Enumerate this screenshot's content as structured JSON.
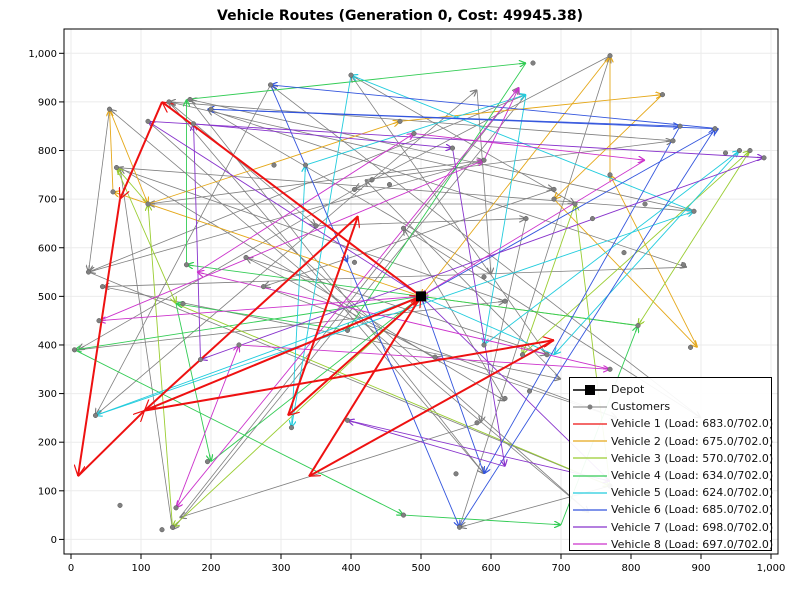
{
  "chart_data": {
    "type": "network-route",
    "title": "Vehicle Routes (Generation 0, Cost: 49945.38)",
    "xlim": [
      -10,
      1010
    ],
    "ylim": [
      -30,
      1050
    ],
    "x_ticks": [
      "0",
      "100",
      "200",
      "300",
      "400",
      "500",
      "600",
      "700",
      "800",
      "900",
      "1,000"
    ],
    "y_ticks": [
      "0",
      "100",
      "200",
      "300",
      "400",
      "500",
      "600",
      "700",
      "800",
      "900",
      "1,000"
    ],
    "x_tick_values": [
      0,
      100,
      200,
      300,
      400,
      500,
      600,
      700,
      800,
      900,
      1000
    ],
    "y_tick_values": [
      0,
      100,
      200,
      300,
      400,
      500,
      600,
      700,
      800,
      900,
      1000
    ],
    "grid": true,
    "legend_position": "bottom-right",
    "depot": {
      "label": "Depot",
      "x": 500,
      "y": 500
    },
    "customers_label": "Customers",
    "customers": [
      [
        70,
        70
      ],
      [
        140,
        900
      ],
      [
        25,
        550
      ],
      [
        55,
        885
      ],
      [
        60,
        715
      ],
      [
        65,
        765
      ],
      [
        110,
        860
      ],
      [
        145,
        25
      ],
      [
        45,
        520
      ],
      [
        110,
        690
      ],
      [
        5,
        390
      ],
      [
        40,
        450
      ],
      [
        35,
        255
      ],
      [
        150,
        65
      ],
      [
        130,
        20
      ],
      [
        170,
        905
      ],
      [
        175,
        855
      ],
      [
        165,
        565
      ],
      [
        160,
        485
      ],
      [
        185,
        370
      ],
      [
        200,
        885
      ],
      [
        195,
        160
      ],
      [
        240,
        400
      ],
      [
        250,
        580
      ],
      [
        285,
        935
      ],
      [
        290,
        770
      ],
      [
        275,
        520
      ],
      [
        315,
        230
      ],
      [
        335,
        770
      ],
      [
        400,
        955
      ],
      [
        405,
        720
      ],
      [
        405,
        570
      ],
      [
        395,
        430
      ],
      [
        395,
        245
      ],
      [
        430,
        740
      ],
      [
        455,
        730
      ],
      [
        475,
        640
      ],
      [
        475,
        50
      ],
      [
        490,
        835
      ],
      [
        470,
        860
      ],
      [
        545,
        805
      ],
      [
        550,
        135
      ],
      [
        555,
        25
      ],
      [
        590,
        540
      ],
      [
        590,
        400
      ],
      [
        590,
        780
      ],
      [
        620,
        290
      ],
      [
        620,
        490
      ],
      [
        645,
        380
      ],
      [
        650,
        660
      ],
      [
        655,
        305
      ],
      [
        660,
        980
      ],
      [
        680,
        380
      ],
      [
        690,
        720
      ],
      [
        690,
        700
      ],
      [
        720,
        690
      ],
      [
        745,
        660
      ],
      [
        770,
        110
      ],
      [
        770,
        350
      ],
      [
        770,
        995
      ],
      [
        770,
        750
      ],
      [
        790,
        590
      ],
      [
        810,
        440
      ],
      [
        820,
        690
      ],
      [
        845,
        915
      ],
      [
        860,
        820
      ],
      [
        870,
        850
      ],
      [
        875,
        565
      ],
      [
        885,
        395
      ],
      [
        890,
        675
      ],
      [
        920,
        845
      ],
      [
        935,
        795
      ],
      [
        955,
        800
      ],
      [
        970,
        800
      ],
      [
        990,
        785
      ],
      [
        580,
        240
      ],
      [
        520,
        375
      ],
      [
        350,
        645
      ]
    ],
    "series": [
      {
        "name": "Vehicle 1 (Load: 683.0/702.0)",
        "color": "#ee1111",
        "route": [
          [
            500,
            500
          ],
          [
            310,
            255
          ],
          [
            410,
            665
          ],
          [
            105,
            265
          ],
          [
            690,
            410
          ],
          [
            340,
            130
          ],
          [
            500,
            500
          ],
          [
            130,
            900
          ],
          [
            70,
            700
          ],
          [
            10,
            130
          ],
          [
            105,
            265
          ],
          [
            500,
            500
          ]
        ]
      },
      {
        "name": "Vehicle 2 (Load: 675.0/702.0)",
        "color": "#e5a81a",
        "route": [
          [
            500,
            500
          ],
          [
            60,
            715
          ],
          [
            55,
            885
          ],
          [
            110,
            690
          ],
          [
            470,
            860
          ],
          [
            845,
            915
          ],
          [
            690,
            700
          ],
          [
            895,
            395
          ],
          [
            770,
            750
          ],
          [
            770,
            995
          ],
          [
            500,
            500
          ]
        ]
      },
      {
        "name": "Vehicle 3 (Load: 570.0/702.0)",
        "color": "#9acd32",
        "route": [
          [
            500,
            500
          ],
          [
            145,
            25
          ],
          [
            110,
            690
          ],
          [
            65,
            765
          ],
          [
            150,
            485
          ],
          [
            770,
            110
          ],
          [
            720,
            690
          ],
          [
            645,
            380
          ],
          [
            970,
            800
          ],
          [
            810,
            440
          ],
          [
            500,
            500
          ]
        ]
      },
      {
        "name": "Vehicle 4 (Load: 634.0/702.0)",
        "color": "#33cc55",
        "route": [
          [
            500,
            500
          ],
          [
            5,
            390
          ],
          [
            475,
            50
          ],
          [
            700,
            30
          ],
          [
            810,
            440
          ],
          [
            165,
            565
          ],
          [
            165,
            905
          ],
          [
            650,
            980
          ],
          [
            395,
            430
          ],
          [
            150,
            485
          ],
          [
            200,
            160
          ],
          [
            500,
            500
          ]
        ]
      },
      {
        "name": "Vehicle 5 (Load: 624.0/702.0)",
        "color": "#22ccdd",
        "route": [
          [
            500,
            500
          ],
          [
            35,
            255
          ],
          [
            890,
            675
          ],
          [
            400,
            955
          ],
          [
            315,
            230
          ],
          [
            335,
            770
          ],
          [
            650,
            915
          ],
          [
            590,
            400
          ],
          [
            955,
            800
          ],
          [
            690,
            380
          ],
          [
            500,
            500
          ]
        ]
      },
      {
        "name": "Vehicle 6 (Load: 685.0/702.0)",
        "color": "#3355dd",
        "route": [
          [
            500,
            500
          ],
          [
            925,
            845
          ],
          [
            285,
            935
          ],
          [
            395,
            570
          ],
          [
            555,
            25
          ],
          [
            920,
            845
          ],
          [
            195,
            885
          ],
          [
            870,
            850
          ],
          [
            590,
            135
          ],
          [
            500,
            500
          ]
        ]
      },
      {
        "name": "Vehicle 7 (Load: 698.0/702.0)",
        "color": "#8833cc",
        "route": [
          [
            500,
            500
          ],
          [
            110,
            860
          ],
          [
            990,
            785
          ],
          [
            185,
            370
          ],
          [
            175,
            855
          ],
          [
            545,
            805
          ],
          [
            620,
            150
          ],
          [
            395,
            245
          ],
          [
            770,
            120
          ],
          [
            500,
            500
          ]
        ]
      },
      {
        "name": "Vehicle 8 (Load: 697.0/702.0)",
        "color": "#cc33cc",
        "route": [
          [
            500,
            500
          ],
          [
            40,
            450
          ],
          [
            590,
            780
          ],
          [
            640,
            930
          ],
          [
            150,
            65
          ],
          [
            240,
            400
          ],
          [
            770,
            350
          ],
          [
            180,
            550
          ],
          [
            490,
            835
          ],
          [
            820,
            780
          ],
          [
            500,
            500
          ]
        ]
      }
    ],
    "unassigned_route_color": "#7f7f7f",
    "unassigned_route": [
      [
        110,
        860
      ],
      [
        740,
        55
      ],
      [
        55,
        885
      ],
      [
        25,
        550
      ],
      [
        650,
        915
      ],
      [
        145,
        20
      ],
      [
        70,
        765
      ],
      [
        620,
        285
      ],
      [
        475,
        640
      ],
      [
        900,
        250
      ],
      [
        285,
        935
      ],
      [
        35,
        255
      ],
      [
        580,
        925
      ],
      [
        600,
        545
      ],
      [
        195,
        885
      ],
      [
        880,
        560
      ],
      [
        45,
        520
      ],
      [
        700,
        330
      ],
      [
        420,
        740
      ],
      [
        860,
        820
      ],
      [
        140,
        900
      ],
      [
        690,
        720
      ],
      [
        275,
        520
      ],
      [
        780,
        250
      ],
      [
        520,
        375
      ],
      [
        250,
        580
      ],
      [
        680,
        380
      ],
      [
        400,
        955
      ],
      [
        720,
        690
      ],
      [
        110,
        690
      ],
      [
        590,
        780
      ],
      [
        25,
        550
      ],
      [
        770,
        110
      ],
      [
        555,
        25
      ],
      [
        770,
        995
      ],
      [
        405,
        720
      ],
      [
        10,
        390
      ],
      [
        620,
        490
      ],
      [
        65,
        765
      ],
      [
        890,
        675
      ],
      [
        170,
        905
      ],
      [
        590,
        135
      ],
      [
        140,
        900
      ],
      [
        350,
        645
      ],
      [
        650,
        660
      ],
      [
        585,
        240
      ],
      [
        155,
        45
      ],
      [
        640,
        930
      ]
    ]
  }
}
